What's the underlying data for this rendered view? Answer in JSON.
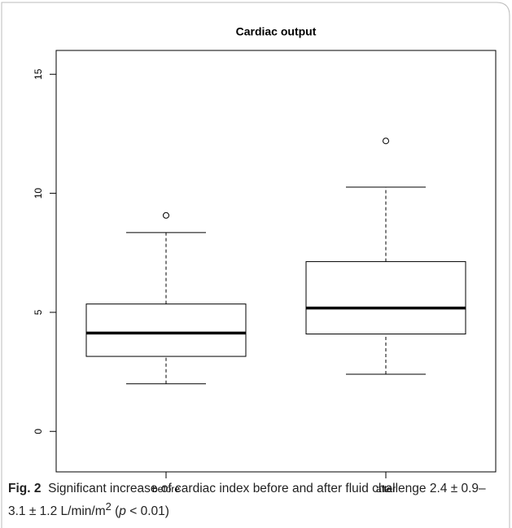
{
  "chart_data": {
    "type": "box",
    "title": "Cardiac output",
    "categories": [
      "before",
      "after"
    ],
    "boxes": [
      {
        "whisker_low": 2.0,
        "q1": 3.15,
        "median": 4.13,
        "q3": 5.35,
        "whisker_high": 8.35,
        "outliers": [
          9.07
        ]
      },
      {
        "whisker_low": 2.4,
        "q1": 4.09,
        "median": 5.18,
        "q3": 7.13,
        "whisker_high": 10.26,
        "outliers": [
          12.2
        ]
      }
    ],
    "ylim": [
      -1.7,
      16
    ],
    "yticks": [
      0,
      5,
      10,
      15
    ]
  },
  "caption": {
    "label": "Fig. 2",
    "text": "Significant increase of cardiac index before and after fluid challenge 2.4 ± 0.9–3.1 ± 1.2 L/min/m",
    "sup": "2",
    "open": " (",
    "italic": "p",
    "close": " < 0.01)"
  }
}
